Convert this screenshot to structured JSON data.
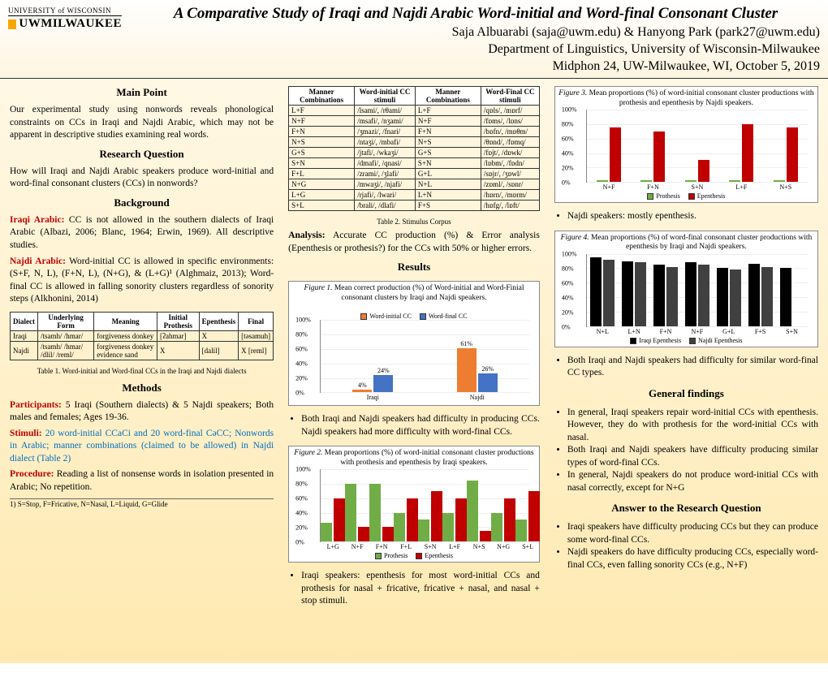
{
  "header": {
    "logo_top": "UNIVERSITY of WISCONSIN",
    "logo_bottom": "UWMILWAUKEE",
    "title": "A Comparative Study of Iraqi and Najdi Arabic Word-initial and Word-final Consonant Cluster",
    "authors": "Saja Albuarabi (saja@uwm.edu) & Hanyong Park (park27@uwm.edu)",
    "dept": "Department of Linguistics, University of Wisconsin-Milwaukee",
    "conf": "Midphon 24, UW-Milwaukee, WI, October 5, 2019"
  },
  "col1": {
    "h_mainpoint": "Main Point",
    "mainpoint": "Our experimental study using nonwords reveals phonological constraints on CCs in Iraqi and Najdi Arabic, which may not be apparent in descriptive studies examining real words.",
    "h_rq": "Research Question",
    "rq": "How will Iraqi and Najdi Arabic speakers produce word-initial and word-final consonant clusters (CCs) in nonwords?",
    "h_bg": "Background",
    "bg_iraqi_label": "Iraqi Arabic:",
    "bg_iraqi": " CC is not allowed in the southern dialects of Iraqi Arabic (Albazi, 2006; Blanc, 1964; Erwin, 1969). All descriptive studies.",
    "bg_najdi_label": "Najdi Arabic:",
    "bg_najdi": " Word-initial CC is allowed in specific environments: (S+F, N, L), (F+N, L), (N+G), & (L+G)¹ (Alghmaiz, 2013); Word-final CC is allowed in falling sonority clusters regardless of sonority steps (Alkhonini, 2014)",
    "table1": {
      "headers": [
        "Dialect",
        "Underlying Form",
        "Meaning",
        "Initial Prothesis",
        "Epenthesis",
        "Final"
      ],
      "rows": [
        [
          "Iraqi",
          "/tsamh/ /hmar/",
          "forgiveness donkey",
          "[ʔahmar]",
          "X",
          "[tǝsamuh]"
        ],
        [
          "Najdi",
          "/tsamh/ /hmar/ /dlil/ /reml/",
          "forgiveness donkey evidence sand",
          "X",
          "[dalil]",
          "X [reml]"
        ]
      ],
      "caption": "Table 1. Word-initial and Word-final CCs in the Iraqi and Najdi dialects"
    },
    "h_methods": "Methods",
    "methods_p_label": "Participants:",
    "methods_p": " 5 Iraqi (Southern dialects) & 5 Najdi speakers; Both males and females; Ages 19-36.",
    "methods_s_label": "Stimuli:",
    "methods_s": "  20 word-initial CCaCi and 20 word-final CəCC; Nonwords in Arabic; manner combinations (claimed to be allowed) in Najdi dialect (Table 2)",
    "methods_pr_label": "Procedure:",
    "methods_pr": " Reading a list of nonsense words in isolation presented in Arabic; No repetition.",
    "footnote": "1) S=Stop, F=Fricative, N=Nasal, L=Liquid, G=Glide"
  },
  "col2": {
    "table2": {
      "headers": [
        "Manner Combinations",
        "Word-initial CC stimuli",
        "Manner Combinations",
        "Word-Final CC stimuli"
      ],
      "rows": [
        [
          "L+F",
          "/lsami/, /rθami/",
          "L+F",
          "/qɒls/, /mɒrf/"
        ],
        [
          "N+F",
          "/msafi/, /nʒami/",
          "N+F",
          "/fɒms/, /lɒns/"
        ],
        [
          "F+N",
          "/ʒmazi/, /fnari/",
          "F+N",
          "/bɒfn/, /mɒθm/"
        ],
        [
          "N+S",
          "/ntaʒi/, /mbafi/",
          "N+S",
          "/θɒnd/, /fɒmq/"
        ],
        [
          "G+S",
          "/jtafi/, /wkaʒi/",
          "G+S",
          "/fɒjt/, /dɒwk/"
        ],
        [
          "S+N",
          "/dmafi/, /qnasi/",
          "S+N",
          "/lɒbm/, /fɒdn/"
        ],
        [
          "F+L",
          "/zrami/, /ʒlafi/",
          "G+L",
          "/sɒjr/, /ʒɒwl/"
        ],
        [
          "N+G",
          "/mwaʒi/, /njafi/",
          "N+L",
          "/zɒml/, /sɒnr/"
        ],
        [
          "L+G",
          "/rjafi/, /lwari/",
          "L+N",
          "/hɒrn/, /mɒrm/"
        ],
        [
          "S+L",
          "/brali/, /dlafi/",
          "F+S",
          "/hɒfg/, /lɒft/"
        ]
      ],
      "caption": "Table 2. Stimulus Corpus"
    },
    "analysis_label": "Analysis:",
    "analysis": " Accurate CC production (%) & Error analysis (Epenthesis or prothesis?) for the CCs with 50% or higher errors.",
    "h_results": "Results",
    "fig1": {
      "caption_prefix": "Figure 1.",
      "caption": " Mean correct production (%) of Word-initial and Word-Finial consonant clusters by Iraqi and Najdi speakers.",
      "type": "grouped-bar",
      "categories": [
        "Iraqi",
        "Najdi"
      ],
      "series": [
        {
          "name": "Word-initial CC",
          "color": "#ed7d31",
          "values": [
            4,
            61
          ]
        },
        {
          "name": "Word-final CC",
          "color": "#4472c4",
          "values": [
            24,
            26
          ]
        }
      ],
      "ylim": [
        0,
        100
      ],
      "ytick": 20,
      "show_values": true
    },
    "fig1_bullet": "Both Iraqi and Najdi speakers had difficulty in producing CCs. Najdi speakers had more difficulty with word-final CCs.",
    "fig2": {
      "caption_prefix": "Figure 2.",
      "caption": " Mean proportions (%) of word-initial consonant cluster productions with prothesis and epenthesis by Iraqi speakers.",
      "type": "grouped-bar",
      "categories": [
        "L+G",
        "N+F",
        "F+N",
        "F+L",
        "S+N",
        "L+F",
        "N+S",
        "N+G",
        "S+L"
      ],
      "series": [
        {
          "name": "Prothesis",
          "color": "#70ad47",
          "values": [
            26,
            80,
            80,
            40,
            30,
            40,
            85,
            40,
            30
          ]
        },
        {
          "name": "Epenthesis",
          "color": "#c00000",
          "values": [
            60,
            20,
            20,
            60,
            70,
            60,
            15,
            60,
            70
          ]
        }
      ],
      "ylim": [
        0,
        100
      ],
      "ytick": 20,
      "show_values": false
    },
    "fig2_bullet": "Iraqi speakers: epenthesis for most word-initial CCs and prothesis for nasal + fricative, fricative + nasal, and nasal + stop stimuli."
  },
  "col3": {
    "fig3": {
      "caption_prefix": "Figure 3.",
      "caption": " Mean proportions (%) of word-initial consonant cluster productions with prothesis and epenthesis by Najdi speakers.",
      "type": "grouped-bar",
      "categories": [
        "N+F",
        "F+N",
        "S+N",
        "L+F",
        "N+S"
      ],
      "series": [
        {
          "name": "Prothesis",
          "color": "#70ad47",
          "values": [
            2,
            2,
            2,
            2,
            2
          ]
        },
        {
          "name": "Epenthesis",
          "color": "#c00000",
          "values": [
            75,
            70,
            30,
            80,
            75
          ]
        }
      ],
      "ylim": [
        0,
        100
      ],
      "ytick": 20,
      "show_values": false
    },
    "fig3_bullet": "Najdi speakers: mostly epenthesis.",
    "fig4": {
      "caption_prefix": "Figure 4.",
      "caption": " Mean proportions (%) of word-final consonant cluster productions with epenthesis by Iraqi and Najdi speakers.",
      "type": "grouped-bar",
      "categories": [
        "N+L",
        "L+N",
        "F+N",
        "N+F",
        "G+L",
        "F+S",
        "S+N"
      ],
      "series": [
        {
          "name": "Iraqi Epenthesis",
          "color": "#000000",
          "values": [
            95,
            90,
            85,
            88,
            80,
            86,
            80
          ]
        },
        {
          "name": "Najdi Epenthesis",
          "color": "#404040",
          "values": [
            92,
            88,
            82,
            85,
            78,
            82,
            0
          ]
        }
      ],
      "ylim": [
        0,
        100
      ],
      "ytick": 20,
      "show_values": false
    },
    "fig4_bullet": "Both Iraqi and Najdi speakers had difficulty for similar word-final CC types.",
    "h_findings": "General findings",
    "findings": [
      "In general, Iraqi speakers repair word-initial CCs with epenthesis. However, they do with prothesis for the word-initial CCs with nasal.",
      "Both Iraqi and Najdi speakers have difficulty producing similar types of word-final CCs.",
      "In general, Najdi speakers do not produce word-initial CCs with nasal correctly, except for N+G"
    ],
    "h_answer": "Answer to the Research Question",
    "answers": [
      "Iraqi speakers have difficulty producing CCs but they can produce some word-final CCs.",
      "Najdi speakers do have difficulty producing CCs, especially word-final CCs, even falling sonority CCs (e.g., N+F)"
    ]
  }
}
